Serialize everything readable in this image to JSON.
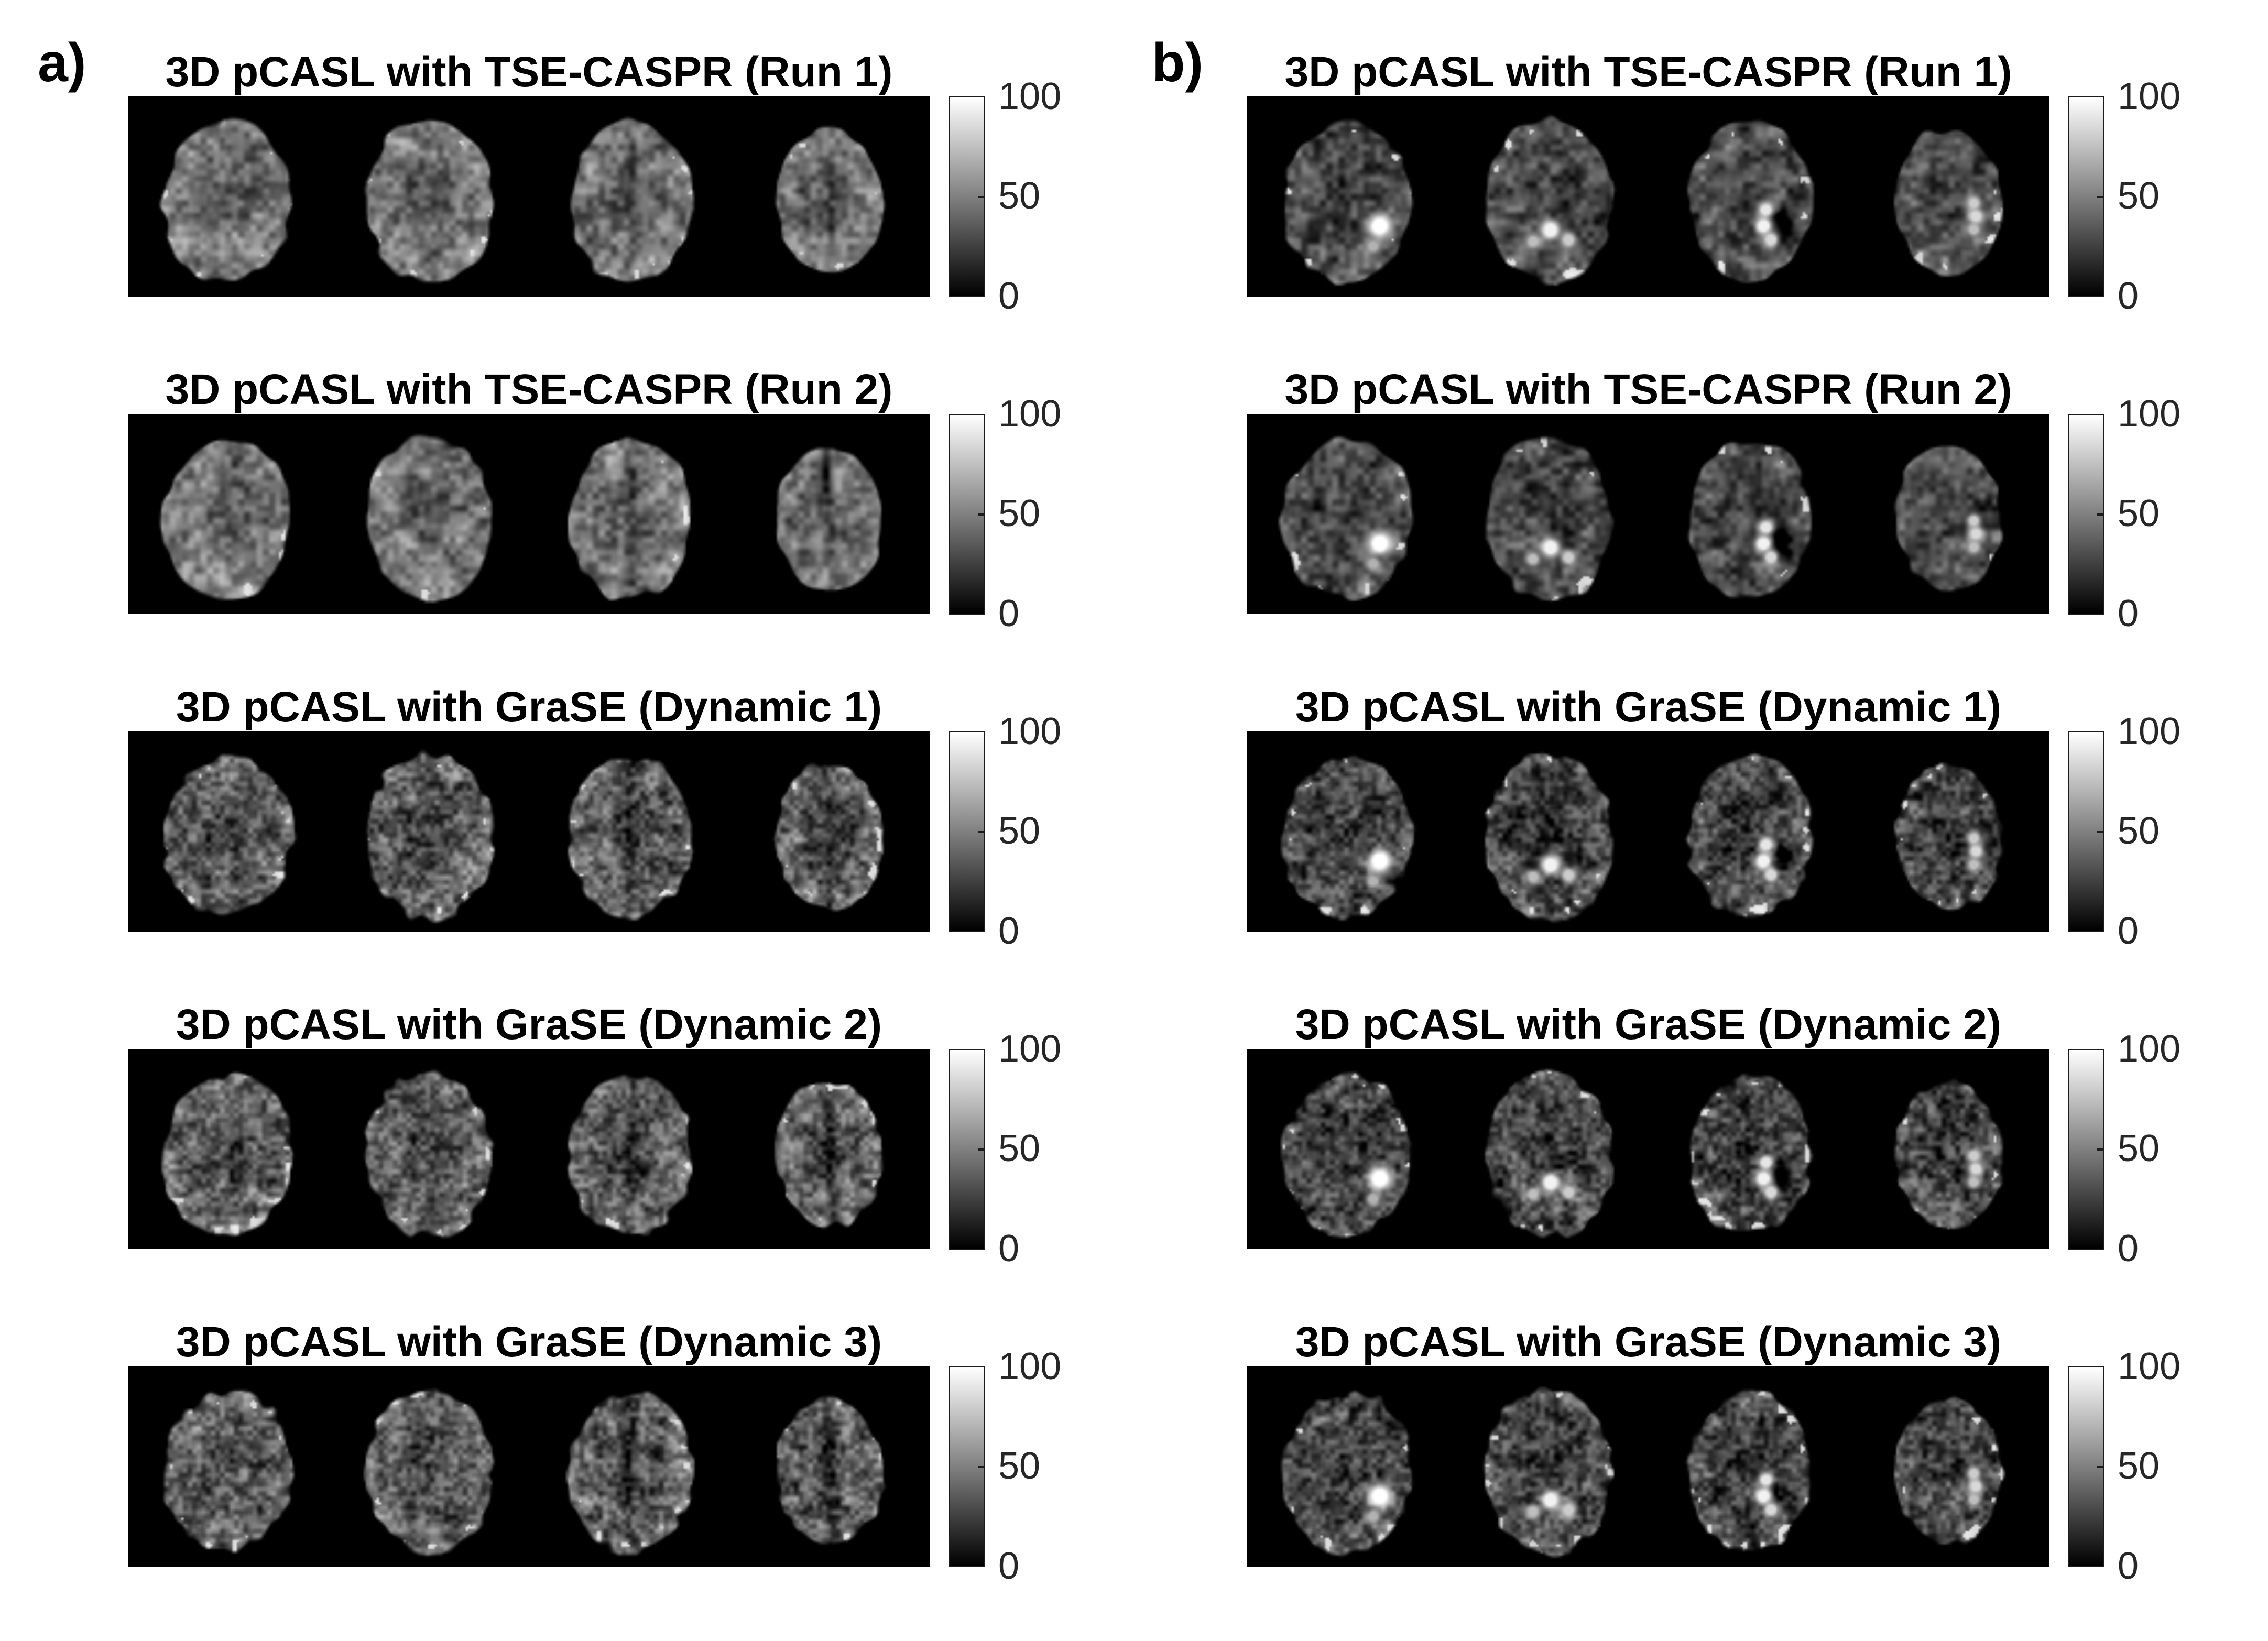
{
  "figure": {
    "kind": "brain-perfusion-mri-figure",
    "background_color": "#ffffff",
    "panel_background_color": "#000000",
    "title_color": "#000000",
    "tick_label_color": "#262626",
    "colorbar": {
      "top_color": "#ffffff",
      "bottom_color": "#000000",
      "ticks": [
        "100",
        "50",
        "0"
      ]
    },
    "slices_per_panel": 4,
    "columns": [
      {
        "label": "a)",
        "panels": [
          {
            "title": "3D pCASL with TSE-CASPR (Run 1)",
            "sequence": "tse"
          },
          {
            "title": "3D pCASL with TSE-CASPR (Run 2)",
            "sequence": "tse"
          },
          {
            "title": "3D pCASL with GraSE (Dynamic 1)",
            "sequence": "grase"
          },
          {
            "title": "3D pCASL with GraSE (Dynamic 2)",
            "sequence": "grase"
          },
          {
            "title": "3D pCASL with GraSE (Dynamic 3)",
            "sequence": "grase"
          }
        ]
      },
      {
        "label": "b)",
        "panels": [
          {
            "title": "3D pCASL with TSE-CASPR (Run 1)",
            "sequence": "tse"
          },
          {
            "title": "3D pCASL with TSE-CASPR (Run 2)",
            "sequence": "tse"
          },
          {
            "title": "3D pCASL with GraSE (Dynamic 1)",
            "sequence": "grase"
          },
          {
            "title": "3D pCASL with GraSE (Dynamic 2)",
            "sequence": "grase"
          },
          {
            "title": "3D pCASL with GraSE (Dynamic 3)",
            "sequence": "grase"
          }
        ]
      }
    ]
  }
}
